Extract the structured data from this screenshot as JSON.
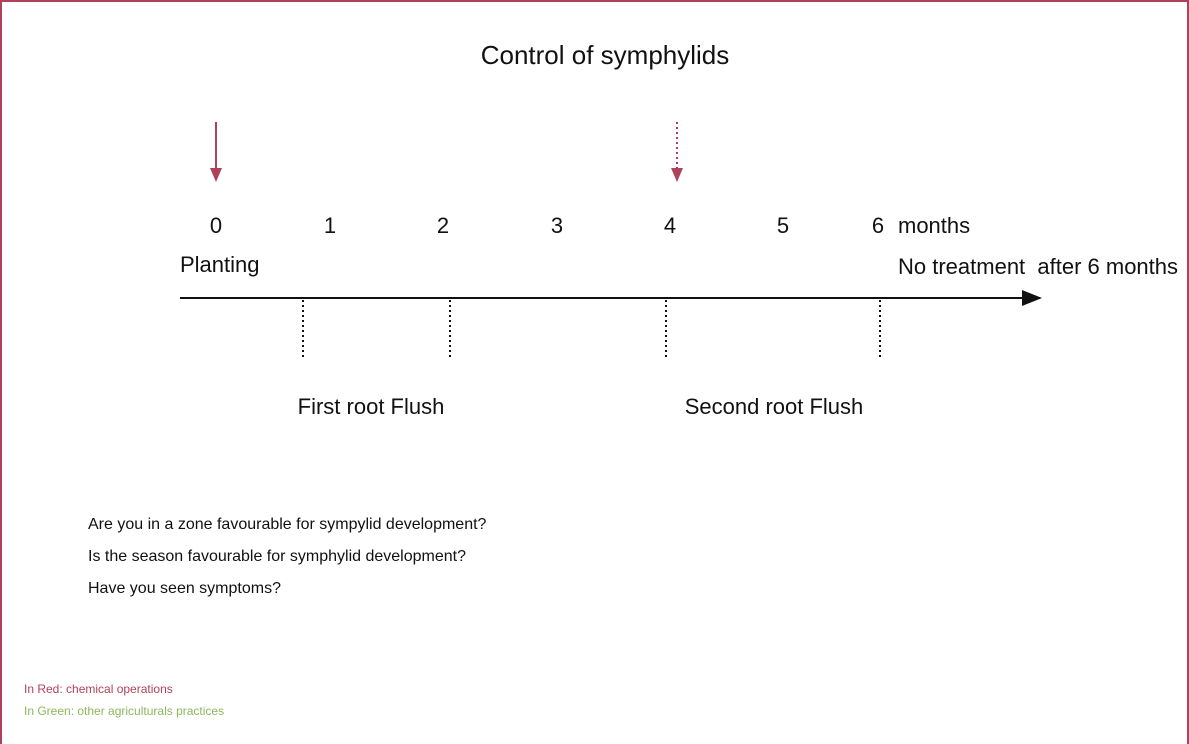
{
  "title": "Control of symphylids",
  "timeline": {
    "months": [
      0,
      1,
      2,
      3,
      4,
      5,
      6
    ],
    "unit": "months",
    "start_label": "Planting",
    "end_label": "No treatment  after 6 months"
  },
  "phases": [
    "First root Flush",
    "Second root Flush"
  ],
  "questions": [
    "Are you in a zone favourable for sympylid development?",
    "Is the season favourable for symphylid development?",
    "Have you seen symptoms?"
  ],
  "legend": {
    "red": "In Red: chemical operations",
    "green": "In Green: other agriculturals practices"
  }
}
